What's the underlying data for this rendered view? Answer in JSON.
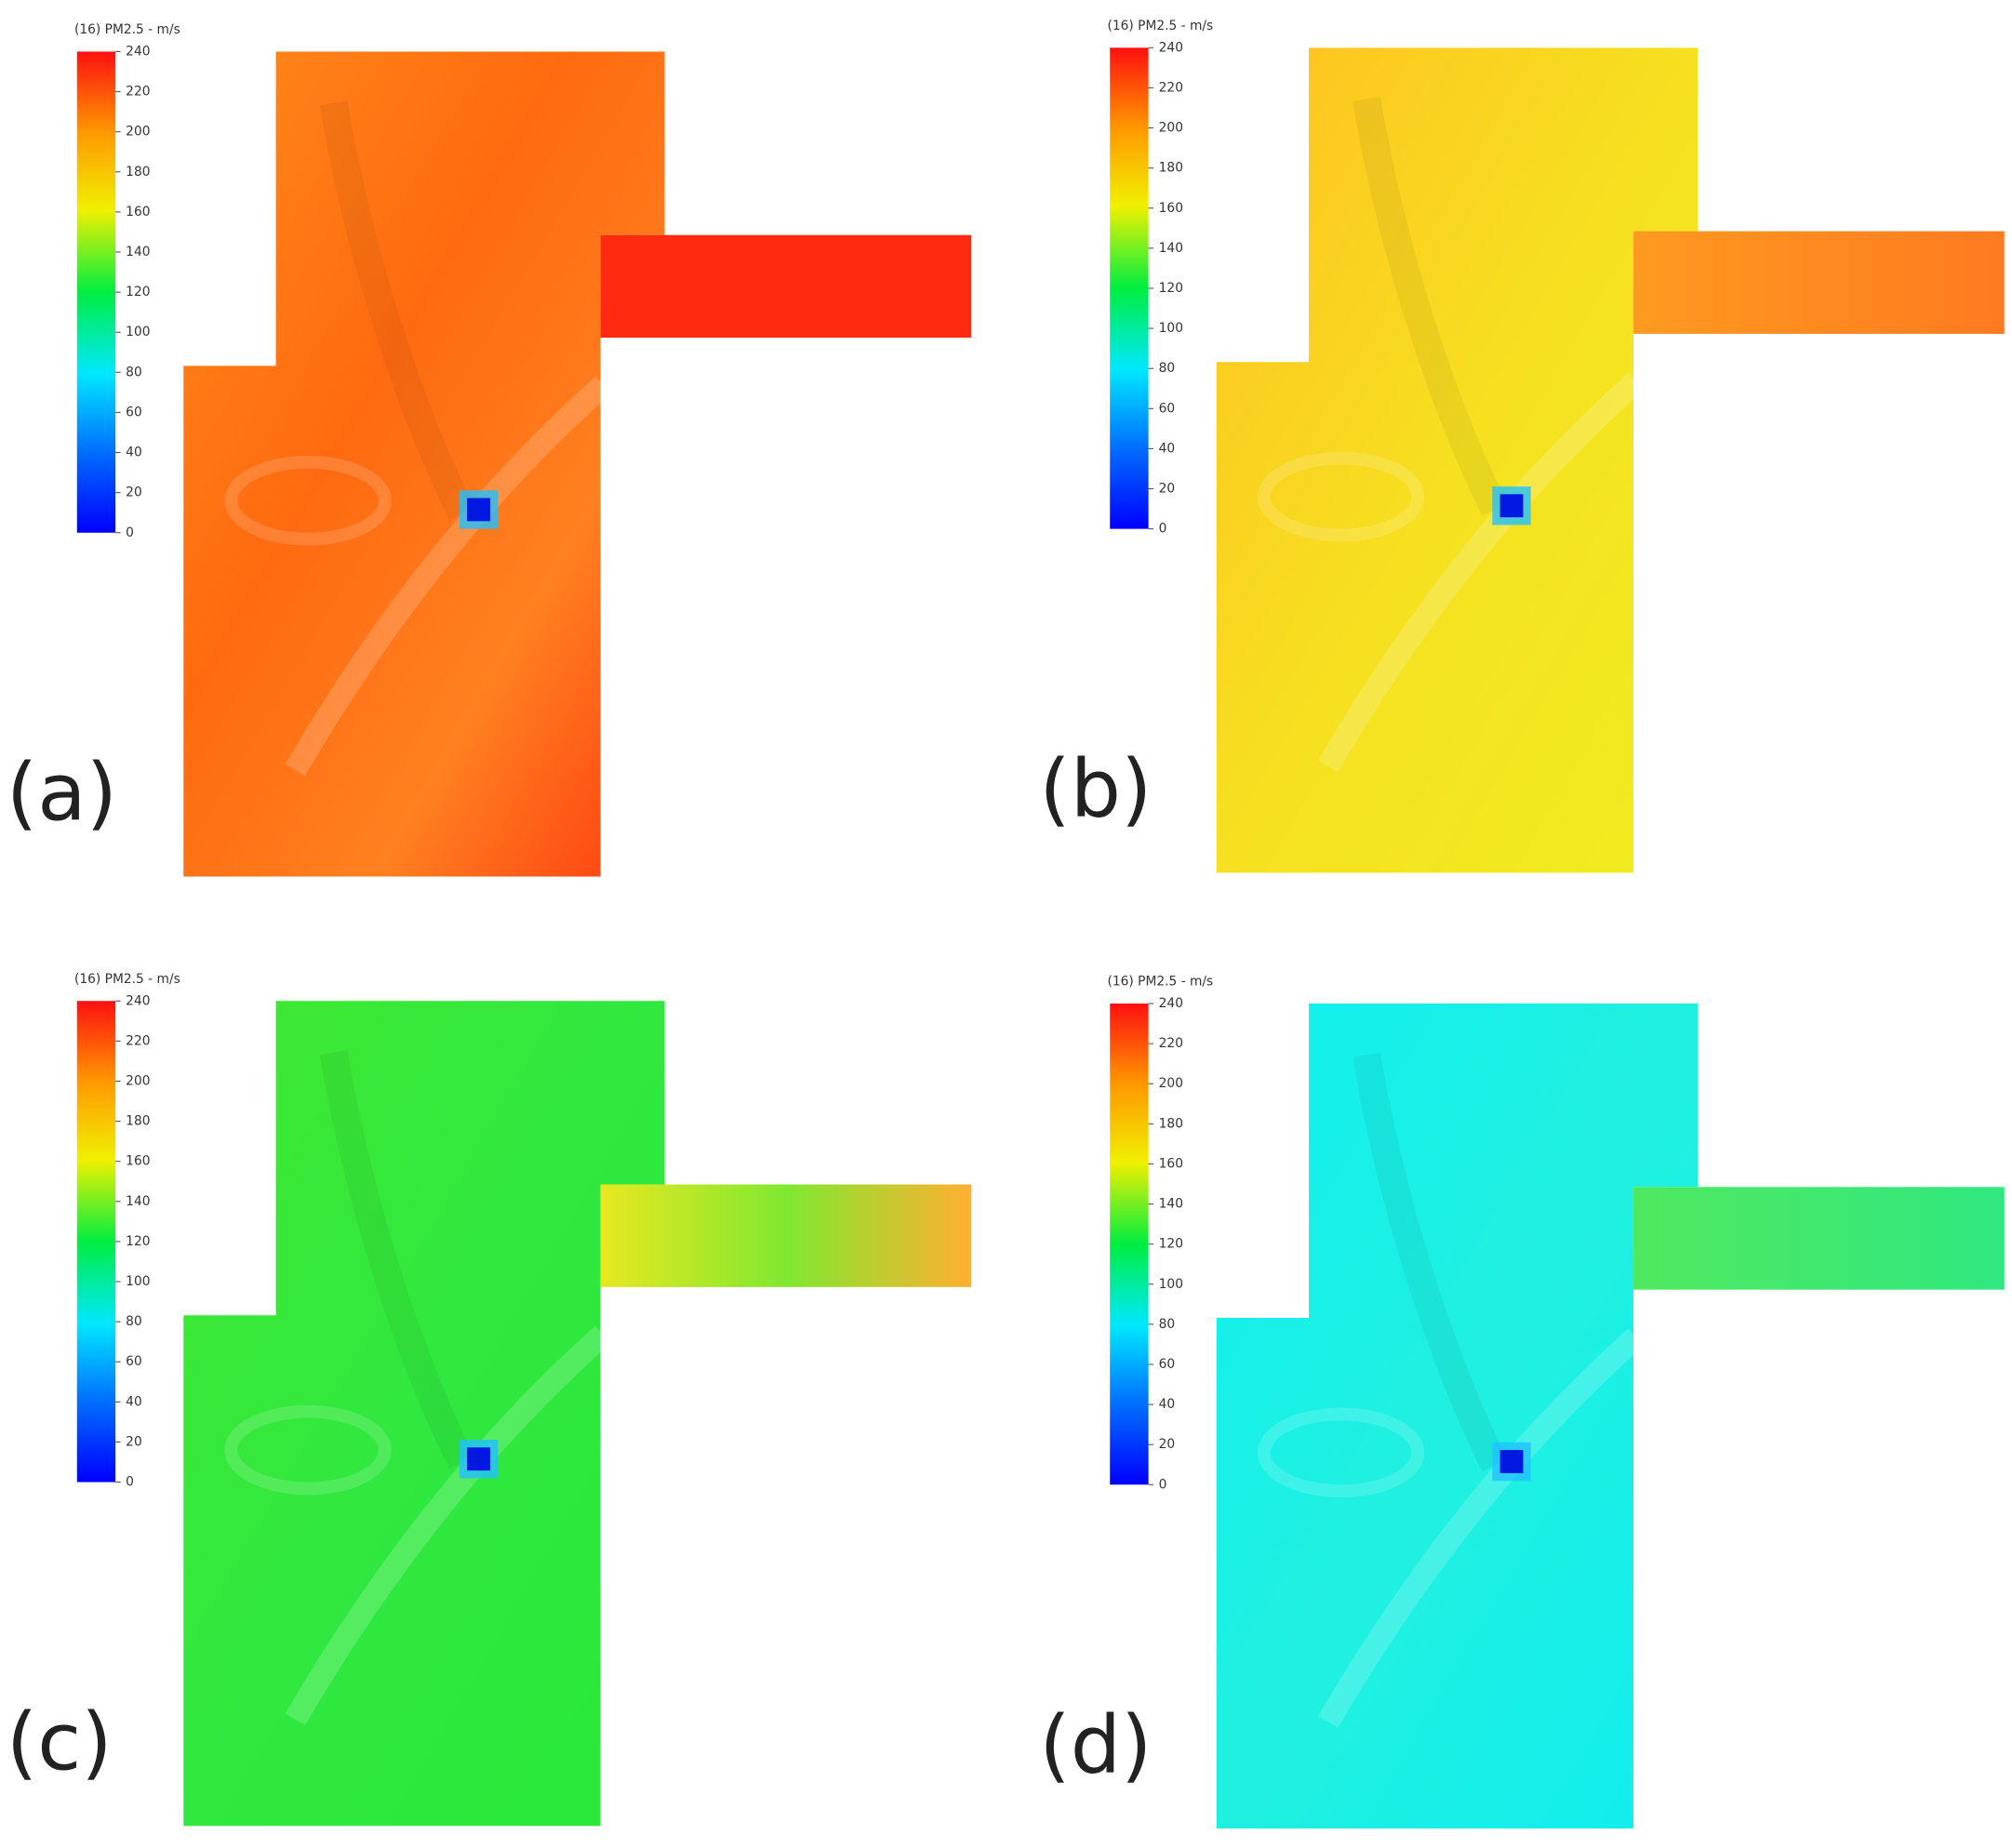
{
  "colorbar": {
    "title": "(16) PM2.5 - m/s",
    "ticks": [
      0,
      20,
      40,
      60,
      80,
      100,
      120,
      140,
      160,
      180,
      200,
      220,
      240
    ]
  },
  "panels": [
    {
      "label": "(a)"
    },
    {
      "label": "(b)"
    },
    {
      "label": "(c)"
    },
    {
      "label": "(d)"
    }
  ]
}
